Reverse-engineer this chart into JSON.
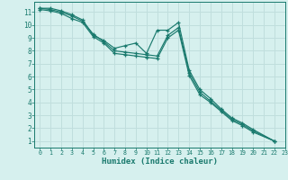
{
  "xlabel": "Humidex (Indice chaleur)",
  "background_color": "#d6f0ee",
  "grid_color": "#c0dedd",
  "line_color": "#1a7a6e",
  "xlim": [
    -0.5,
    23
  ],
  "ylim": [
    0.5,
    11.8
  ],
  "yticks": [
    1,
    2,
    3,
    4,
    5,
    6,
    7,
    8,
    9,
    10,
    11
  ],
  "xticks": [
    0,
    1,
    2,
    3,
    4,
    5,
    6,
    7,
    8,
    9,
    10,
    11,
    12,
    13,
    14,
    15,
    16,
    17,
    18,
    19,
    20,
    21,
    22,
    23
  ],
  "series1_x": [
    0,
    1,
    2,
    3,
    4,
    5,
    6,
    7,
    8,
    9,
    10,
    11,
    12,
    13,
    14,
    15,
    16,
    17,
    18,
    19,
    20,
    22
  ],
  "series1_y": [
    11.3,
    11.3,
    11.1,
    10.8,
    10.4,
    9.2,
    8.8,
    8.2,
    8.4,
    8.6,
    7.8,
    9.6,
    9.6,
    10.2,
    6.5,
    5.0,
    4.3,
    3.5,
    2.8,
    2.4,
    1.9,
    1.0
  ],
  "series2_x": [
    0,
    1,
    2,
    3,
    4,
    5,
    6,
    7,
    8,
    9,
    10,
    11,
    12,
    13,
    14,
    15,
    16,
    17,
    18,
    19,
    20,
    22
  ],
  "series2_y": [
    11.3,
    11.2,
    11.0,
    10.7,
    10.3,
    9.3,
    8.7,
    8.0,
    7.9,
    7.8,
    7.7,
    7.6,
    9.2,
    9.8,
    6.3,
    4.8,
    4.1,
    3.4,
    2.7,
    2.3,
    1.8,
    1.0
  ],
  "series3_x": [
    0,
    1,
    2,
    3,
    4,
    5,
    6,
    7,
    8,
    9,
    10,
    11,
    12,
    13,
    14,
    15,
    16,
    17,
    18,
    19,
    20,
    22
  ],
  "series3_y": [
    11.2,
    11.1,
    10.9,
    10.5,
    10.2,
    9.1,
    8.6,
    7.8,
    7.7,
    7.6,
    7.5,
    7.4,
    9.0,
    9.6,
    6.1,
    4.6,
    4.0,
    3.3,
    2.6,
    2.2,
    1.7,
    1.0
  ]
}
